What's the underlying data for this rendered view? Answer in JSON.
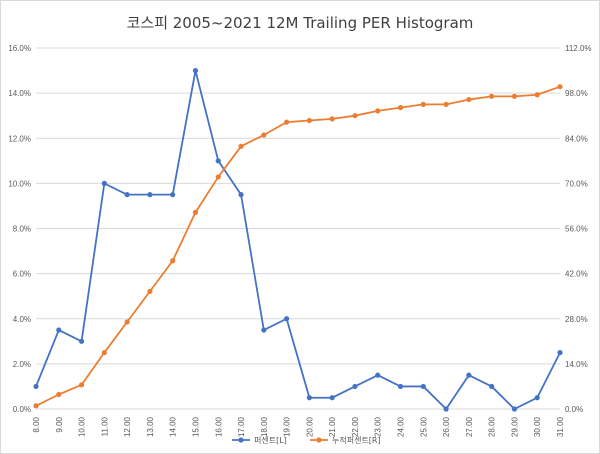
{
  "chart_data": {
    "type": "line",
    "title": "코스피 2005~2021 12M Trailing PER Histogram",
    "categories": [
      "8.00",
      "9.00",
      "10.00",
      "11.00",
      "12.00",
      "13.00",
      "14.00",
      "15.00",
      "16.00",
      "17.00",
      "18.00",
      "19.00",
      "20.00",
      "21.00",
      "22.00",
      "23.00",
      "24.00",
      "25.00",
      "26.00",
      "27.00",
      "28.00",
      "29.00",
      "30.00",
      "31.00"
    ],
    "left_axis": {
      "ylim": [
        0,
        16
      ],
      "tick_labels": [
        "0.0%",
        "2.0%",
        "4.0%",
        "6.0%",
        "8.0%",
        "10.0%",
        "12.0%",
        "14.0%",
        "16.0%"
      ]
    },
    "right_axis": {
      "ylim": [
        0,
        112
      ],
      "tick_labels": [
        "0.0%",
        "14.0%",
        "28.0%",
        "42.0%",
        "56.0%",
        "70.0%",
        "84.0%",
        "98.0%",
        "112.0%"
      ]
    },
    "series": [
      {
        "name": "퍼센트[L]",
        "axis": "left",
        "color": "#4472c4",
        "values": [
          1.0,
          3.5,
          3.0,
          10.0,
          9.5,
          9.5,
          9.5,
          15.0,
          11.0,
          9.5,
          3.5,
          4.0,
          0.5,
          0.5,
          1.0,
          1.5,
          1.0,
          1.0,
          0.0,
          1.5,
          1.0,
          0.0,
          0.5,
          2.5
        ]
      },
      {
        "name": "누적퍼센트[R]",
        "axis": "right",
        "color": "#ed7d31",
        "values": [
          1.0,
          4.5,
          7.5,
          17.5,
          27.0,
          36.5,
          46.0,
          61.0,
          72.0,
          81.5,
          85.0,
          89.0,
          89.5,
          90.0,
          91.0,
          92.5,
          93.5,
          94.5,
          94.5,
          96.0,
          97.0,
          97.0,
          97.5,
          100.0
        ]
      }
    ],
    "grid": true,
    "legend_position": "bottom"
  }
}
